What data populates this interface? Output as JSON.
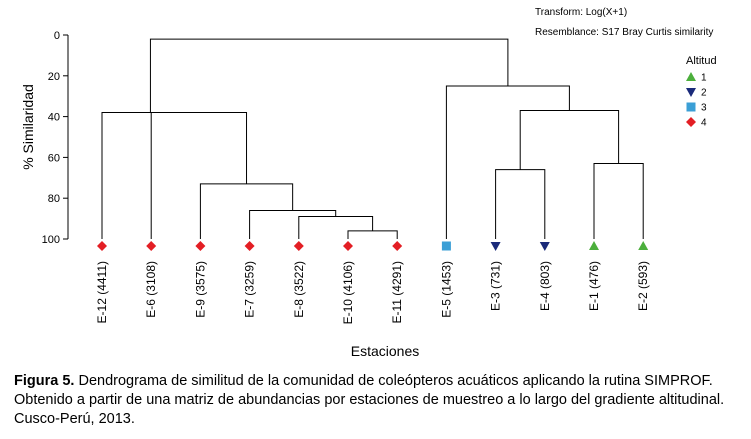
{
  "chart_data": {
    "type": "dendrogram",
    "ylabel": "% Similaridad",
    "xlabel": "Estaciones",
    "ylim": [
      0,
      100
    ],
    "y_reversed": true,
    "y_ticks": [
      0,
      20,
      40,
      60,
      80,
      100
    ],
    "transform_note": "Transform: Log(X+1)",
    "resemblance_note": "Resemblance: S17 Bray Curtis similarity",
    "legend": {
      "title": "Altitud",
      "position": "top-right",
      "entries": [
        {
          "label": "1",
          "marker": "triangle-up",
          "color": "#4caf3c"
        },
        {
          "label": "2",
          "marker": "triangle-down",
          "color": "#1a2a7a"
        },
        {
          "label": "3",
          "marker": "square",
          "color": "#3b9fd6"
        },
        {
          "label": "4",
          "marker": "diamond",
          "color": "#e31e24"
        }
      ]
    },
    "leaves": [
      {
        "id": "E-12",
        "label": "E-12 (4411)",
        "group": "4"
      },
      {
        "id": "E-6",
        "label": "E-6 (3108)",
        "group": "4"
      },
      {
        "id": "E-9",
        "label": "E-9 (3575)",
        "group": "4"
      },
      {
        "id": "E-7",
        "label": "E-7 (3259)",
        "group": "4"
      },
      {
        "id": "E-8",
        "label": "E-8 (3522)",
        "group": "4"
      },
      {
        "id": "E-10",
        "label": "E-10 (4106)",
        "group": "4"
      },
      {
        "id": "E-11",
        "label": "E-11 (4291)",
        "group": "4"
      },
      {
        "id": "E-5",
        "label": "E-5 (1453)",
        "group": "3"
      },
      {
        "id": "E-3",
        "label": "E-3 (731)",
        "group": "2"
      },
      {
        "id": "E-4",
        "label": "E-4 (803)",
        "group": "2"
      },
      {
        "id": "E-1",
        "label": "E-1 (476)",
        "group": "1"
      },
      {
        "id": "E-2",
        "label": "E-2 (593)",
        "group": "1"
      }
    ],
    "merges": [
      {
        "a": "E-10",
        "b": "E-11",
        "similarity": 96
      },
      {
        "a": "E-8",
        "b": [
          "E-10",
          "E-11"
        ],
        "similarity": 89
      },
      {
        "a": "E-7",
        "b": [
          "E-8",
          "E-10",
          "E-11"
        ],
        "similarity": 86
      },
      {
        "a": "E-9",
        "b": [
          "E-7",
          "E-8",
          "E-10",
          "E-11"
        ],
        "similarity": 73
      },
      {
        "a": "E-6",
        "b": [
          "E-9",
          "E-7",
          "E-8",
          "E-10",
          "E-11"
        ],
        "similarity": 38
      },
      {
        "a": "E-12",
        "b": [
          "E-6",
          "E-9",
          "E-7",
          "E-8",
          "E-10",
          "E-11"
        ],
        "similarity": 38
      },
      {
        "a": "E-3",
        "b": "E-4",
        "similarity": 66
      },
      {
        "a": "E-1",
        "b": "E-2",
        "similarity": 63
      },
      {
        "a": [
          "E-3",
          "E-4"
        ],
        "b": [
          "E-1",
          "E-2"
        ],
        "similarity": 37
      },
      {
        "a": "E-5",
        "b": [
          "E-3",
          "E-4",
          "E-1",
          "E-2"
        ],
        "similarity": 25
      },
      {
        "a": [
          "E-12",
          "E-6",
          "E-9",
          "E-7",
          "E-8",
          "E-10",
          "E-11"
        ],
        "b": [
          "E-5",
          "E-3",
          "E-4",
          "E-1",
          "E-2"
        ],
        "similarity": 2
      }
    ]
  },
  "caption": {
    "label": "Figura 5.",
    "text": " Dendrograma de similitud  de la comunidad de coleópteros acuáticos aplicando la rutina SIMPROF. Obtenido a partir de una matriz de abundancias por estaciones de muestreo a lo largo del gradiente altitudinal. Cusco-Perú, 2013."
  }
}
